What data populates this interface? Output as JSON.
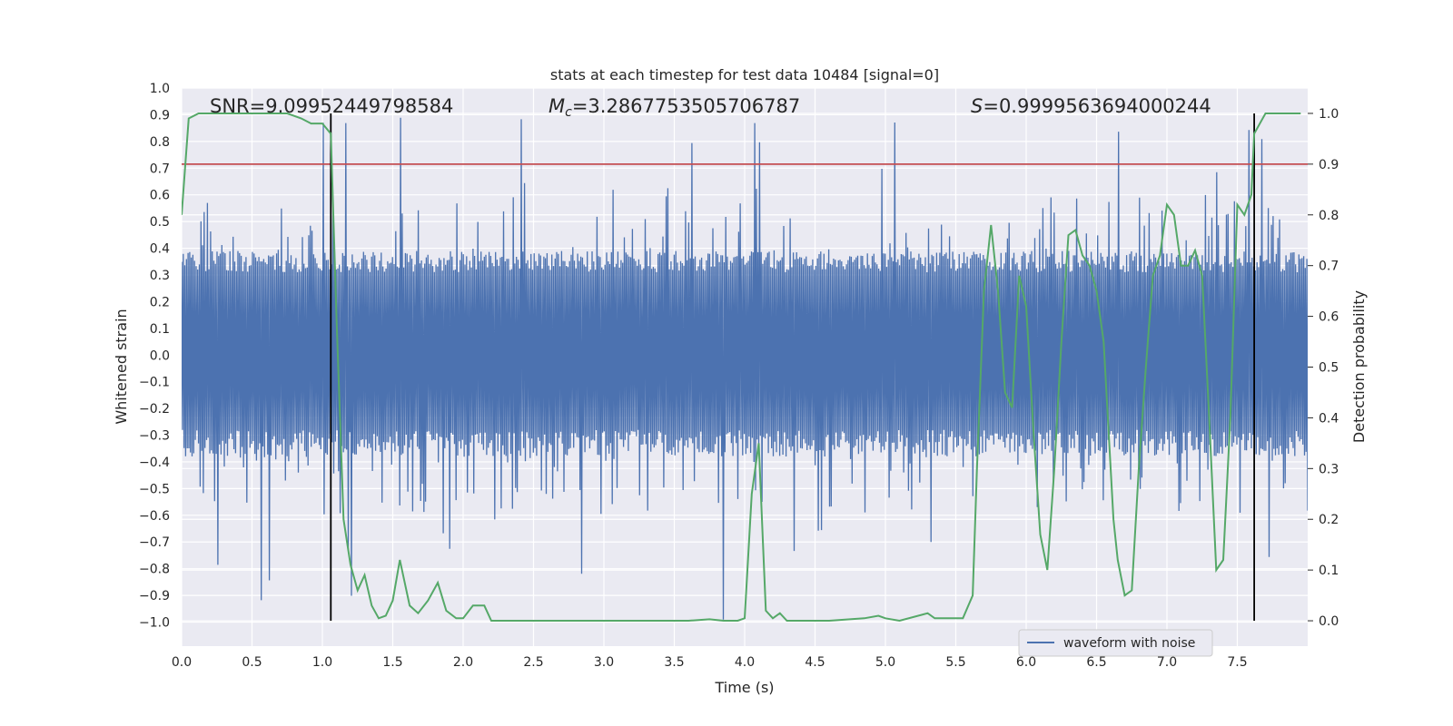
{
  "chart_data": {
    "type": "line",
    "title": "stats at each timestep for test data 10484 [signal=0]",
    "xlabel": "Time (s)",
    "ylabel_left": "Whitened strain",
    "ylabel_right": "Detection probability",
    "xlim": [
      0.0,
      8.0
    ],
    "ylim_left": [
      -1.09,
      1.0
    ],
    "ylim_right": [
      -0.05,
      1.05
    ],
    "xticks": [
      "0.0",
      "0.5",
      "1.0",
      "1.5",
      "2.0",
      "2.5",
      "3.0",
      "3.5",
      "4.0",
      "4.5",
      "5.0",
      "5.5",
      "6.0",
      "6.5",
      "7.0",
      "7.5"
    ],
    "yticks_left": [
      "1.0",
      "0.9",
      "0.8",
      "0.7",
      "0.6",
      "0.5",
      "0.4",
      "0.3",
      "0.2",
      "0.1",
      "0.0",
      "−0.1",
      "−0.2",
      "−0.3",
      "−0.4",
      "−0.5",
      "−0.6",
      "−0.7",
      "−0.8",
      "−0.9",
      "−1.0"
    ],
    "yticks_right": [
      "1.0",
      "0.9",
      "0.8",
      "0.7",
      "0.6",
      "0.5",
      "0.4",
      "0.3",
      "0.2",
      "0.1",
      "0.0"
    ],
    "annotations": {
      "snr": "SNR=9.09952449798584",
      "mc_symbol": "M",
      "mc_sub": "c",
      "mc_value": "=3.2867753505706787",
      "s_symbol": "S",
      "s_value": "=0.9999563694000244"
    },
    "legend": {
      "label": "waveform with noise",
      "placement": "lower-right"
    },
    "threshold": {
      "value": 0.9,
      "axis": "right",
      "color": "#c44e52"
    },
    "vertical_markers": {
      "x": [
        1.06,
        7.62
      ],
      "color": "#000000"
    },
    "waveform": {
      "name": "waveform with noise",
      "color": "#4c72b0",
      "samples": 1400,
      "band": [
        -0.28,
        0.31
      ],
      "spike_max": [
        0.9,
        -1.0
      ]
    },
    "detection_probability": {
      "name": "detection probability",
      "color": "#55a868",
      "x": [
        0.0,
        0.05,
        0.12,
        0.2,
        0.3,
        0.45,
        0.6,
        0.75,
        0.85,
        0.92,
        1.0,
        1.06,
        1.1,
        1.15,
        1.2,
        1.25,
        1.3,
        1.35,
        1.4,
        1.45,
        1.5,
        1.55,
        1.62,
        1.68,
        1.75,
        1.82,
        1.88,
        1.95,
        2.0,
        2.07,
        2.15,
        2.2,
        2.25,
        2.3,
        2.5,
        2.7,
        2.9,
        3.0,
        3.2,
        3.4,
        3.6,
        3.75,
        3.85,
        3.95,
        4.0,
        4.05,
        4.1,
        4.15,
        4.2,
        4.25,
        4.3,
        4.4,
        4.6,
        4.85,
        4.95,
        5.0,
        5.1,
        5.3,
        5.35,
        5.45,
        5.55,
        5.62,
        5.65,
        5.7,
        5.75,
        5.8,
        5.85,
        5.9,
        5.95,
        6.0,
        6.05,
        6.1,
        6.15,
        6.2,
        6.25,
        6.3,
        6.35,
        6.4,
        6.45,
        6.5,
        6.55,
        6.62,
        6.65,
        6.7,
        6.75,
        6.8,
        6.85,
        6.9,
        6.95,
        7.0,
        7.05,
        7.1,
        7.15,
        7.2,
        7.25,
        7.3,
        7.35,
        7.4,
        7.45,
        7.5,
        7.55,
        7.6,
        7.62,
        7.7,
        7.75,
        7.85,
        7.95
      ],
      "y": [
        0.8,
        0.99,
        1.0,
        1.0,
        1.0,
        1.0,
        1.0,
        1.0,
        0.99,
        0.98,
        0.98,
        0.96,
        0.6,
        0.2,
        0.11,
        0.06,
        0.09,
        0.03,
        0.005,
        0.01,
        0.04,
        0.12,
        0.03,
        0.015,
        0.04,
        0.075,
        0.02,
        0.005,
        0.005,
        0.03,
        0.03,
        0.0,
        0.0,
        0.0,
        0.0,
        0.0,
        0.0,
        0.0,
        0.0,
        0.0,
        0.0,
        0.003,
        0.0,
        0.0,
        0.005,
        0.25,
        0.35,
        0.02,
        0.005,
        0.015,
        0.0,
        0.0,
        0.0,
        0.005,
        0.01,
        0.005,
        0.0,
        0.015,
        0.005,
        0.005,
        0.005,
        0.05,
        0.3,
        0.65,
        0.78,
        0.65,
        0.45,
        0.42,
        0.68,
        0.62,
        0.38,
        0.17,
        0.1,
        0.3,
        0.55,
        0.76,
        0.77,
        0.72,
        0.7,
        0.65,
        0.55,
        0.2,
        0.12,
        0.05,
        0.06,
        0.3,
        0.5,
        0.68,
        0.72,
        0.82,
        0.8,
        0.7,
        0.7,
        0.73,
        0.68,
        0.4,
        0.1,
        0.12,
        0.4,
        0.82,
        0.8,
        0.84,
        0.96,
        1.0,
        1.0,
        1.0,
        1.0
      ]
    }
  }
}
